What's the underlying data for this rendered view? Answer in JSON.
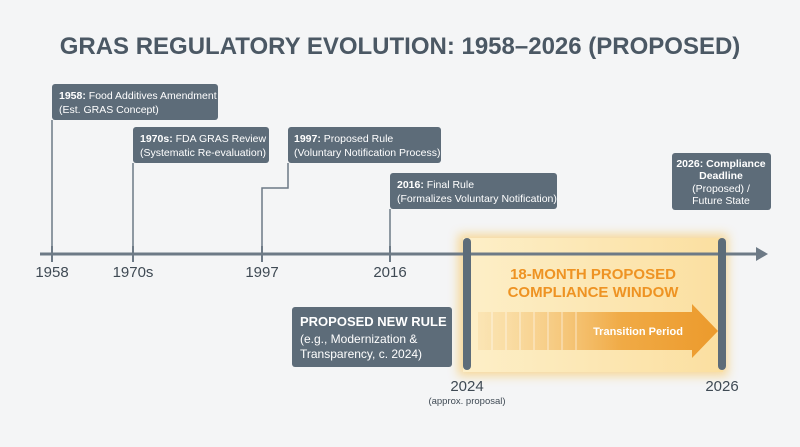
{
  "title": "GRAS REGULATORY EVOLUTION: 1958–2026 (PROPOSED)",
  "axis_labels": [
    "1958",
    "1970s",
    "1997",
    "2016"
  ],
  "events": [
    {
      "label": "1958:",
      "text": "Food Additives Amendment",
      "note": "(Est. GRAS Concept)"
    },
    {
      "label": "1970s:",
      "text": "FDA GRAS Review",
      "note": "(Systematic Re-evaluation)"
    },
    {
      "label": "1997:",
      "text": "Proposed Rule",
      "note": "(Voluntary Notification Process)"
    },
    {
      "label": "2016:",
      "text": "Final Rule",
      "note": "(Formalizes Voluntary Notification)"
    }
  ],
  "deadline": {
    "heading": [
      "2026: Compliance",
      "Deadline"
    ],
    "note": [
      "(Proposed) /",
      "Future State"
    ]
  },
  "window": {
    "heading": [
      "18-MONTH PROPOSED",
      "COMPLIANCE WINDOW"
    ],
    "arrow": "Transition Period"
  },
  "proposal": {
    "heading": "PROPOSED NEW RULE",
    "note": [
      "(e.g., Modernization &",
      "Transparency, c. 2024)"
    ]
  },
  "markers": [
    {
      "label": "2024",
      "note": "(approx. proposal)"
    },
    {
      "label": "2026"
    }
  ]
}
